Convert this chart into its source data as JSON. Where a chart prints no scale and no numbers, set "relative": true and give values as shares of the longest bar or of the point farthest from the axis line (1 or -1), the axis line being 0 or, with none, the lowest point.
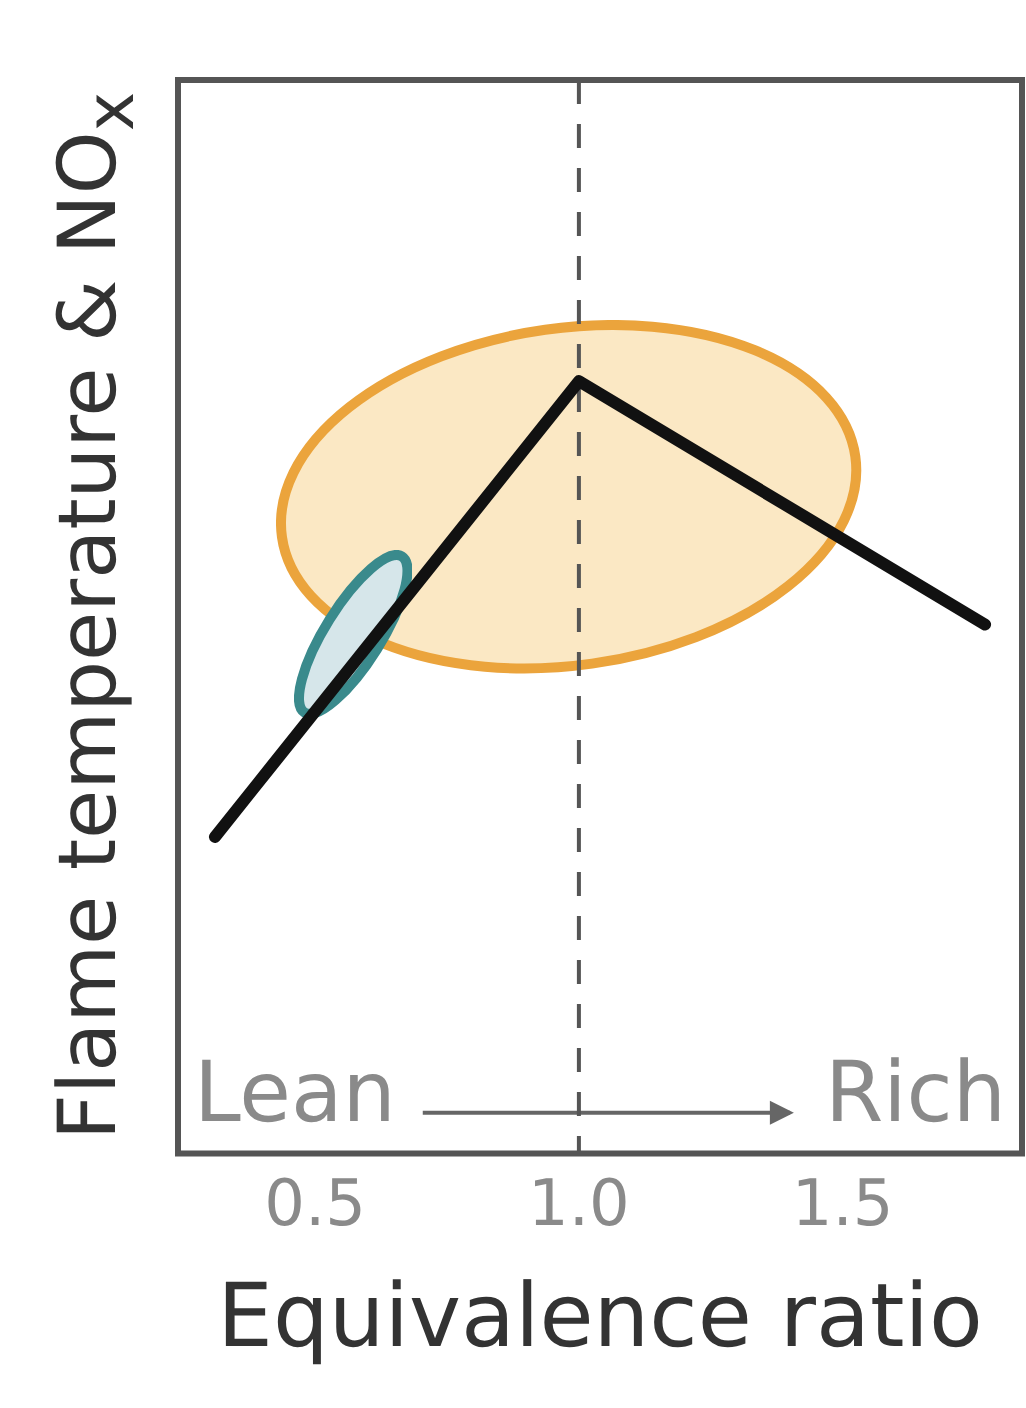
{
  "chart_data": {
    "type": "line",
    "xlabel": "Equivalence ratio",
    "ylabel": "Flame temperature & NO$_{x}$",
    "relative": true,
    "xlim": [
      0.24,
      1.84
    ],
    "xticks": [
      0.5,
      {
        "value": 1,
        "label": "1.0"
      },
      1.5
    ],
    "series": [
      {
        "color": "#111111",
        "x": [
          0.31,
          1.0,
          1.77
        ],
        "values": [
          0.41,
          1,
          0.685
        ]
      }
    ],
    "ref_lines": [
      {
        "axis": "x",
        "value": 1,
        "line_style": "dashed",
        "color": "#555555"
      }
    ],
    "annotations": [
      "Lean",
      "Rich"
    ],
    "grid": false,
    "legend": false,
    "marker": "none",
    "line_style": "solid"
  }
}
